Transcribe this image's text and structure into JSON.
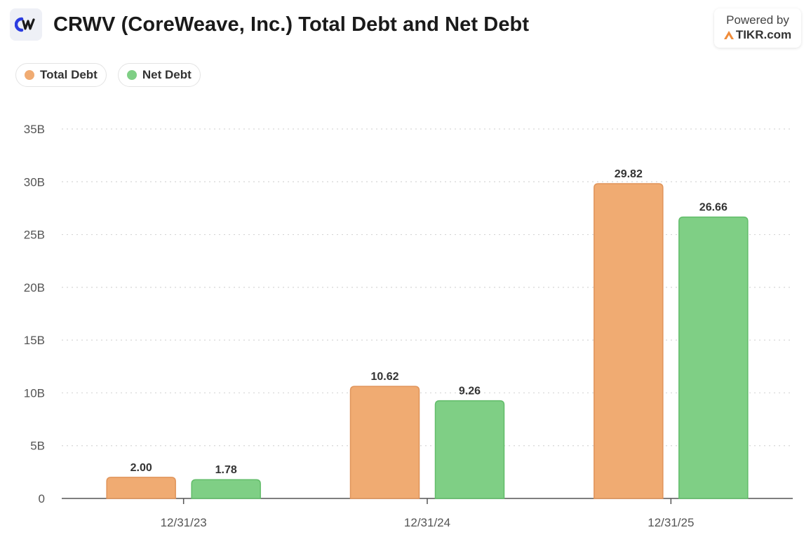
{
  "header": {
    "title": "CRWV (CoreWeave, Inc.) Total Debt and Net Debt",
    "logo_icon": "coreweave-logo-icon"
  },
  "powered_by": {
    "line1": "Powered by",
    "line2": "TIKR.com",
    "icon": "tikr-logo-icon"
  },
  "colors": {
    "total_debt": "#f0ab72",
    "total_debt_stroke": "#e0945a",
    "net_debt": "#7fcf85",
    "net_debt_stroke": "#62bd6a",
    "grid": "#d6d6d6",
    "axis": "#555555"
  },
  "chart_data": {
    "type": "bar",
    "title": "CRWV (CoreWeave, Inc.) Total Debt and Net Debt",
    "categories": [
      "12/31/23",
      "12/31/24",
      "12/31/25"
    ],
    "series": [
      {
        "name": "Total Debt",
        "values": [
          2.0,
          10.62,
          29.82
        ],
        "labels": [
          "2.00",
          "10.62",
          "29.82"
        ]
      },
      {
        "name": "Net Debt",
        "values": [
          1.78,
          9.26,
          26.66
        ],
        "labels": [
          "1.78",
          "9.26",
          "26.66"
        ]
      }
    ],
    "ylim": [
      0,
      35
    ],
    "yticks": [
      0,
      5,
      10,
      15,
      20,
      25,
      30,
      35
    ],
    "ytick_labels": [
      "0",
      "5B",
      "10B",
      "15B",
      "20B",
      "25B",
      "30B",
      "35B"
    ],
    "grid": true,
    "legend_position": "top-left"
  }
}
